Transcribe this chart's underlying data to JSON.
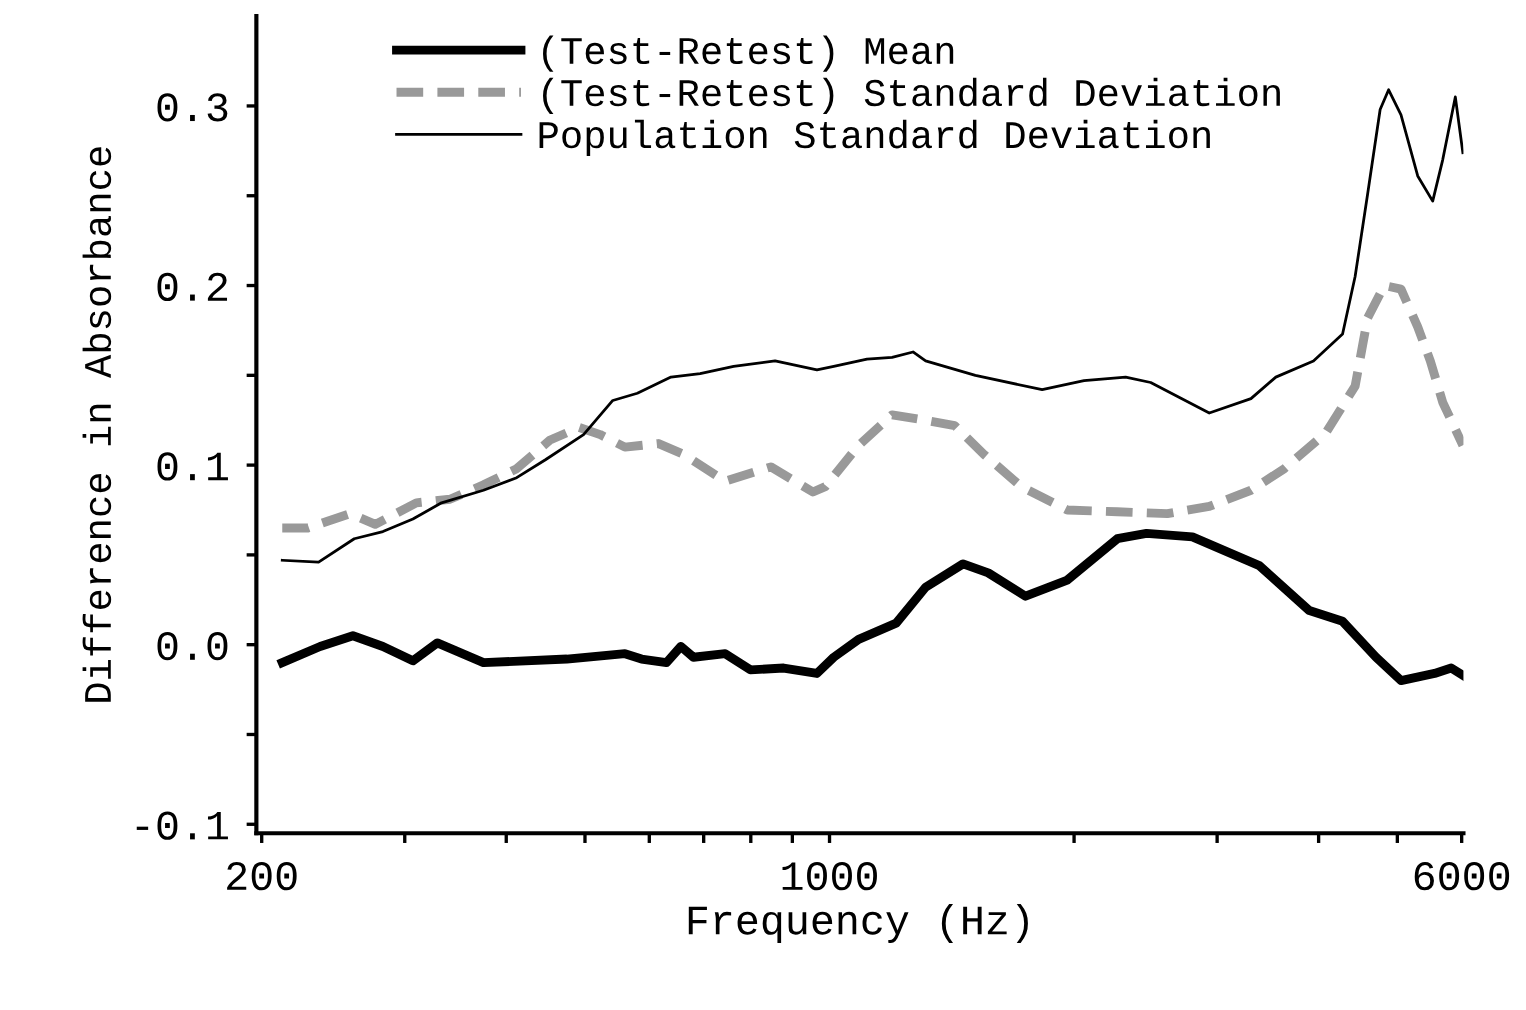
{
  "chart_data": {
    "type": "line",
    "xlabel": "Frequency (Hz)",
    "ylabel": "Difference in Absorbance",
    "log": "x",
    "xlim": [
      197,
      6030
    ],
    "ylim": [
      -0.105,
      0.35
    ],
    "xticks": [
      200,
      {
        "value": 300,
        "label": null
      },
      {
        "value": 400,
        "label": null
      },
      {
        "value": 500,
        "label": null
      },
      {
        "value": 600,
        "label": null
      },
      {
        "value": 700,
        "label": null
      },
      {
        "value": 800,
        "label": null
      },
      {
        "value": 900,
        "label": null
      },
      1000,
      {
        "value": 2000,
        "label": null
      },
      {
        "value": 3000,
        "label": null
      },
      {
        "value": 4000,
        "label": null
      },
      {
        "value": 5000,
        "label": null
      },
      6000
    ],
    "yticks": [
      {
        "value": -0.1,
        "label": "-0.1"
      },
      {
        "value": -0.05,
        "label": null
      },
      {
        "value": 0.0,
        "label": "0.0"
      },
      {
        "value": 0.05,
        "label": null
      },
      0.1,
      {
        "value": 0.15,
        "label": null
      },
      0.2,
      {
        "value": 0.25,
        "label": null
      },
      0.3
    ],
    "grid": false,
    "legend": "top left",
    "marker": "none",
    "series": [
      {
        "name": "(Test-Retest) Mean",
        "color": "#000000",
        "line_style": "solid",
        "x": [
          212,
          236,
          259,
          282,
          307,
          329,
          375,
          475,
          560,
          587,
          630,
          656,
          680,
          744,
          799,
          878,
          965,
          1012,
          1086,
          1208,
          1313,
          1460,
          1568,
          1743,
          1962,
          2261,
          2456,
          2797,
          3381,
          3896,
          4281,
          4707,
          5052,
          5556,
          5824,
          6020
        ],
        "values": [
          -0.01,
          -0.001,
          0.005,
          -0.001,
          -0.009,
          0.001,
          -0.01,
          -0.008,
          -0.005,
          -0.008,
          -0.01,
          -0.001,
          -0.007,
          -0.005,
          -0.014,
          -0.013,
          -0.016,
          -0.007,
          0.003,
          0.012,
          0.032,
          0.045,
          0.04,
          0.027,
          0.036,
          0.059,
          0.062,
          0.06,
          0.044,
          0.019,
          0.013,
          -0.007,
          -0.02,
          -0.016,
          -0.013,
          -0.017
        ]
      },
      {
        "name": "(Test-Retest) Standard Deviation",
        "color": "#999999",
        "line_style": "dashed",
        "x": [
          212,
          228,
          257,
          276,
          310,
          341,
          375,
          412,
          453,
          492,
          522,
          560,
          616,
          661,
          744,
          847,
          954,
          988,
          1086,
          1194,
          1313,
          1426,
          1549,
          1722,
          1962,
          2261,
          2605,
          2934,
          3302,
          3629,
          4083,
          4436,
          4596,
          4819,
          5052,
          5297,
          5490,
          5686,
          6020
        ],
        "values": [
          0.065,
          0.065,
          0.073,
          0.067,
          0.079,
          0.081,
          0.089,
          0.098,
          0.114,
          0.121,
          0.117,
          0.11,
          0.112,
          0.106,
          0.091,
          0.099,
          0.085,
          0.088,
          0.111,
          0.128,
          0.125,
          0.122,
          0.106,
          0.088,
          0.075,
          0.074,
          0.073,
          0.077,
          0.086,
          0.098,
          0.118,
          0.144,
          0.182,
          0.2,
          0.198,
          0.177,
          0.158,
          0.135,
          0.111
        ]
      },
      {
        "name": "Population Standard Deviation",
        "color": "#000000",
        "line_style": "solid",
        "x": [
          212,
          235,
          260,
          282,
          307,
          333,
          375,
          412,
          447,
          498,
          541,
          580,
          638,
          693,
          762,
          857,
          965,
          1012,
          1112,
          1194,
          1267,
          1313,
          1512,
          1827,
          2057,
          2315,
          2485,
          2934,
          3302,
          3543,
          3942,
          4281,
          4436,
          4596,
          4762,
          4878,
          5052,
          5297,
          5527,
          5686,
          5893,
          6020
        ],
        "values": [
          0.047,
          0.046,
          0.059,
          0.063,
          0.07,
          0.079,
          0.086,
          0.093,
          0.103,
          0.117,
          0.136,
          0.14,
          0.149,
          0.151,
          0.155,
          0.158,
          0.153,
          0.155,
          0.159,
          0.16,
          0.163,
          0.158,
          0.15,
          0.142,
          0.147,
          0.149,
          0.146,
          0.129,
          0.137,
          0.149,
          0.158,
          0.173,
          0.205,
          0.251,
          0.298,
          0.309,
          0.295,
          0.261,
          0.247,
          0.27,
          0.305,
          0.274
        ]
      }
    ]
  }
}
